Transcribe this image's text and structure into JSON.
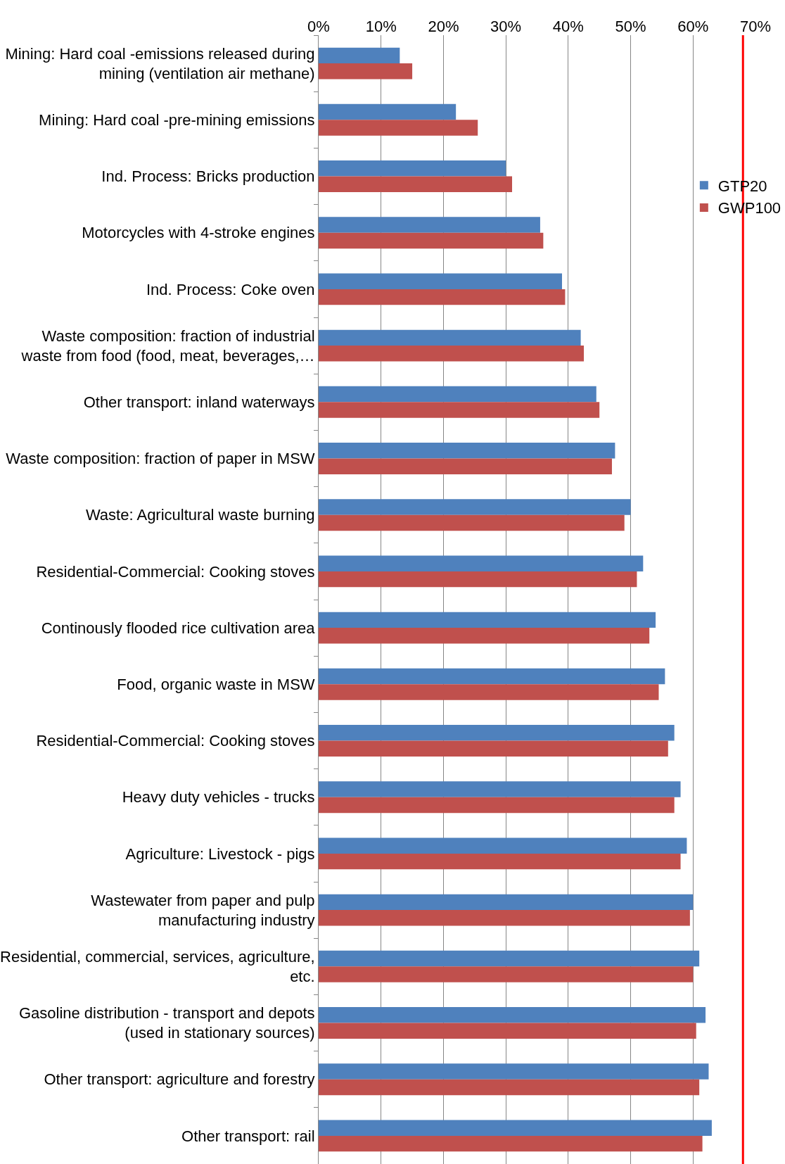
{
  "chart_data": {
    "type": "bar",
    "orientation": "horizontal",
    "categories": [
      "Mining: Hard coal -emissions released during\nmining (ventilation air methane)",
      "Mining: Hard coal -pre-mining emissions",
      "Ind. Process: Bricks production",
      "Motorcycles with 4-stroke engines",
      "Ind. Process: Coke oven",
      "Waste composition: fraction of industrial\nwaste from food (food, meat, beverages,…",
      "Other transport: inland waterways",
      "Waste composition: fraction of paper in MSW",
      "Waste: Agricultural waste burning",
      "Residential-Commercial: Cooking stoves",
      "Continously flooded rice cultivation area",
      "Food, organic waste in MSW",
      "Residential-Commercial: Cooking stoves",
      "Heavy duty vehicles - trucks",
      "Agriculture: Livestock - pigs",
      "Wastewater from paper and pulp\nmanufacturing industry",
      "Residential, commercial, services, agriculture,\netc.",
      "Gasoline distribution - transport and depots\n(used in stationary sources)",
      "Other transport: agriculture and forestry",
      "Other transport: rail"
    ],
    "series": [
      {
        "name": "GTP20",
        "color": "#4f81bd",
        "values": [
          13,
          22,
          30,
          35.5,
          39,
          42,
          44.5,
          47.5,
          50,
          52,
          54,
          55.5,
          57,
          58,
          59,
          60,
          61,
          62,
          62.5,
          63
        ]
      },
      {
        "name": "GWP100",
        "color": "#c0504d",
        "values": [
          15,
          25.5,
          31,
          36,
          39.5,
          42.5,
          45,
          47,
          49,
          51,
          53,
          54.5,
          56,
          57,
          58,
          59.5,
          60,
          60.5,
          61,
          61.5
        ]
      }
    ],
    "xlim": [
      0,
      70
    ],
    "xticks": [
      {
        "value": 0,
        "label": "0%"
      },
      {
        "value": 10,
        "label": "10%"
      },
      {
        "value": 20,
        "label": "20%"
      },
      {
        "value": 30,
        "label": "30%"
      },
      {
        "value": 40,
        "label": "40%"
      },
      {
        "value": 50,
        "label": "50%"
      },
      {
        "value": 60,
        "label": "60%"
      },
      {
        "value": 70,
        "label": "70%"
      }
    ],
    "ref_lines": [
      {
        "axis": "x",
        "value": 68,
        "color": "#ff0000"
      }
    ],
    "grid": "x",
    "legend": "right"
  }
}
